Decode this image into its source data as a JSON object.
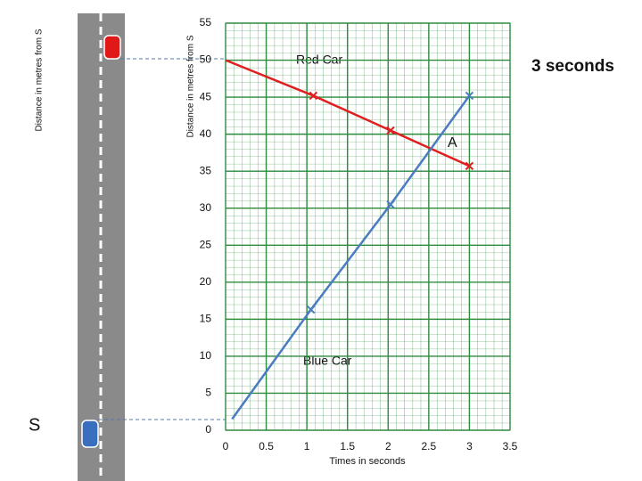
{
  "chart_data": {
    "type": "line",
    "ylabel": "Distance in metres from S",
    "xlabel": "Times in seconds",
    "road_label": "Distance in metres from S",
    "start_label": "S",
    "annotations": [
      "Red Car",
      "Blue Car",
      "A",
      "3 seconds"
    ],
    "series": [
      {
        "name": "Red Car",
        "color": "#e02020",
        "x": [
          0,
          1.08,
          2.03,
          3
        ],
        "values": [
          50,
          45.2,
          40.5,
          35.7
        ]
      },
      {
        "name": "Blue Car",
        "color": "#4a7cc0",
        "x": [
          0.08,
          1.05,
          2.03,
          3
        ],
        "values": [
          1.5,
          16.3,
          30.5,
          45.2
        ]
      }
    ],
    "xlim": [
      0,
      3.5
    ],
    "xticks": [
      0,
      0.5,
      1,
      1.5,
      2,
      2.5,
      3,
      3.5
    ],
    "ylim": [
      0,
      55
    ],
    "yticks": [
      0,
      5,
      10,
      15,
      20,
      25,
      30,
      35,
      40,
      45,
      50,
      55
    ],
    "grid": true,
    "grid_color": "#2e8b3e"
  }
}
